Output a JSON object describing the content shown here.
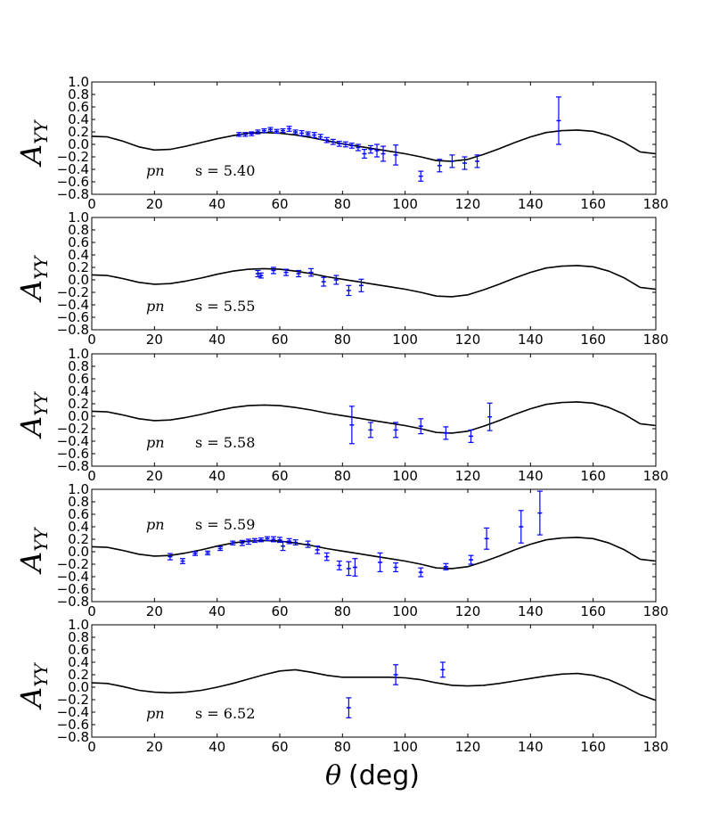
{
  "chart_data": {
    "type": "scatter",
    "shared_axes": {
      "xlabel_symbol": "θ",
      "xlabel_unit": "(deg)",
      "ylabel_main": "A",
      "ylabel_sub": "YY",
      "xlim": [
        0,
        180
      ],
      "ylim": [
        -0.8,
        1.0
      ],
      "xticks": [
        "0",
        "20",
        "40",
        "60",
        "80",
        "100",
        "120",
        "140",
        "160",
        "180"
      ],
      "yticks": [
        "1.0",
        "0.8",
        "0.6",
        "0.4",
        "0.2",
        "0.0",
        "−0.2",
        "−0.4",
        "−0.6",
        "−0.8"
      ],
      "ytick_values": [
        1.0,
        0.8,
        0.6,
        0.4,
        0.2,
        0.0,
        -0.2,
        -0.4,
        -0.6,
        -0.8
      ],
      "xtick_values": [
        0,
        20,
        40,
        60,
        80,
        100,
        120,
        140,
        160,
        180
      ],
      "data_color": "#0000ff",
      "curve_color": "#000000"
    },
    "panels": [
      {
        "reaction": "pn",
        "energy_label": "s = 5.40",
        "label_position": "bottom-left",
        "curve": [
          [
            0,
            0.13
          ],
          [
            5,
            0.12
          ],
          [
            10,
            0.05
          ],
          [
            15,
            -0.04
          ],
          [
            20,
            -0.09
          ],
          [
            25,
            -0.08
          ],
          [
            30,
            -0.03
          ],
          [
            35,
            0.03
          ],
          [
            40,
            0.09
          ],
          [
            45,
            0.14
          ],
          [
            50,
            0.18
          ],
          [
            55,
            0.19
          ],
          [
            60,
            0.18
          ],
          [
            65,
            0.15
          ],
          [
            70,
            0.11
          ],
          [
            75,
            0.06
          ],
          [
            80,
            0.01
          ],
          [
            85,
            -0.03
          ],
          [
            90,
            -0.07
          ],
          [
            95,
            -0.11
          ],
          [
            100,
            -0.15
          ],
          [
            105,
            -0.2
          ],
          [
            110,
            -0.26
          ],
          [
            115,
            -0.27
          ],
          [
            120,
            -0.24
          ],
          [
            125,
            -0.16
          ],
          [
            130,
            -0.07
          ],
          [
            135,
            0.03
          ],
          [
            140,
            0.12
          ],
          [
            145,
            0.19
          ],
          [
            150,
            0.22
          ],
          [
            155,
            0.23
          ],
          [
            160,
            0.21
          ],
          [
            165,
            0.14
          ],
          [
            170,
            0.03
          ],
          [
            175,
            -0.12
          ],
          [
            180,
            -0.15
          ]
        ],
        "points": [
          [
            47,
            0.16,
            0.03
          ],
          [
            49,
            0.16,
            0.03
          ],
          [
            51,
            0.17,
            0.03
          ],
          [
            53,
            0.2,
            0.03
          ],
          [
            55,
            0.22,
            0.03
          ],
          [
            57,
            0.24,
            0.03
          ],
          [
            59,
            0.21,
            0.03
          ],
          [
            61,
            0.22,
            0.03
          ],
          [
            63,
            0.25,
            0.04
          ],
          [
            65,
            0.2,
            0.03
          ],
          [
            67,
            0.18,
            0.04
          ],
          [
            69,
            0.17,
            0.03
          ],
          [
            71,
            0.15,
            0.04
          ],
          [
            73,
            0.12,
            0.04
          ],
          [
            75,
            0.07,
            0.04
          ],
          [
            77,
            0.04,
            0.04
          ],
          [
            79,
            0.01,
            0.04
          ],
          [
            81,
            0.0,
            0.04
          ],
          [
            83,
            -0.02,
            0.04
          ],
          [
            85,
            -0.05,
            0.05
          ],
          [
            87,
            -0.15,
            0.07
          ],
          [
            89,
            -0.08,
            0.06
          ],
          [
            91,
            -0.1,
            0.1
          ],
          [
            93,
            -0.15,
            0.12
          ],
          [
            97,
            -0.17,
            0.16
          ],
          [
            105,
            -0.51,
            0.08
          ],
          [
            111,
            -0.34,
            0.1
          ],
          [
            115,
            -0.27,
            0.1
          ],
          [
            119,
            -0.3,
            0.1
          ],
          [
            123,
            -0.27,
            0.1
          ],
          [
            149,
            0.38,
            0.38
          ]
        ]
      },
      {
        "reaction": "pn",
        "energy_label": "s = 5.55",
        "label_position": "bottom-left",
        "curve": [
          [
            0,
            0.08
          ],
          [
            5,
            0.07
          ],
          [
            10,
            0.02
          ],
          [
            15,
            -0.04
          ],
          [
            20,
            -0.07
          ],
          [
            25,
            -0.06
          ],
          [
            30,
            -0.02
          ],
          [
            35,
            0.03
          ],
          [
            40,
            0.09
          ],
          [
            45,
            0.14
          ],
          [
            50,
            0.17
          ],
          [
            55,
            0.18
          ],
          [
            60,
            0.17
          ],
          [
            65,
            0.14
          ],
          [
            70,
            0.1
          ],
          [
            75,
            0.05
          ],
          [
            80,
            0.01
          ],
          [
            85,
            -0.03
          ],
          [
            90,
            -0.07
          ],
          [
            95,
            -0.11
          ],
          [
            100,
            -0.15
          ],
          [
            105,
            -0.2
          ],
          [
            110,
            -0.26
          ],
          [
            115,
            -0.27
          ],
          [
            120,
            -0.24
          ],
          [
            125,
            -0.16
          ],
          [
            130,
            -0.07
          ],
          [
            135,
            0.03
          ],
          [
            140,
            0.12
          ],
          [
            145,
            0.19
          ],
          [
            150,
            0.22
          ],
          [
            155,
            0.23
          ],
          [
            160,
            0.21
          ],
          [
            165,
            0.14
          ],
          [
            170,
            0.03
          ],
          [
            175,
            -0.12
          ],
          [
            180,
            -0.15
          ]
        ],
        "points": [
          [
            53,
            0.1,
            0.05
          ],
          [
            54,
            0.07,
            0.04
          ],
          [
            58,
            0.15,
            0.05
          ],
          [
            62,
            0.12,
            0.05
          ],
          [
            66,
            0.1,
            0.05
          ],
          [
            70,
            0.12,
            0.06
          ],
          [
            74,
            -0.03,
            0.07
          ],
          [
            78,
            0.0,
            0.07
          ],
          [
            82,
            -0.17,
            0.08
          ],
          [
            86,
            -0.09,
            0.1
          ]
        ]
      },
      {
        "reaction": "pn",
        "energy_label": "s = 5.58",
        "label_position": "bottom-left",
        "curve": [
          [
            0,
            0.08
          ],
          [
            5,
            0.07
          ],
          [
            10,
            0.02
          ],
          [
            15,
            -0.04
          ],
          [
            20,
            -0.07
          ],
          [
            25,
            -0.06
          ],
          [
            30,
            -0.02
          ],
          [
            35,
            0.03
          ],
          [
            40,
            0.09
          ],
          [
            45,
            0.14
          ],
          [
            50,
            0.17
          ],
          [
            55,
            0.18
          ],
          [
            60,
            0.17
          ],
          [
            65,
            0.14
          ],
          [
            70,
            0.1
          ],
          [
            75,
            0.05
          ],
          [
            80,
            0.01
          ],
          [
            85,
            -0.03
          ],
          [
            90,
            -0.07
          ],
          [
            95,
            -0.11
          ],
          [
            100,
            -0.15
          ],
          [
            105,
            -0.2
          ],
          [
            110,
            -0.26
          ],
          [
            115,
            -0.27
          ],
          [
            120,
            -0.24
          ],
          [
            125,
            -0.16
          ],
          [
            130,
            -0.07
          ],
          [
            135,
            0.03
          ],
          [
            140,
            0.12
          ],
          [
            145,
            0.19
          ],
          [
            150,
            0.22
          ],
          [
            155,
            0.23
          ],
          [
            160,
            0.21
          ],
          [
            165,
            0.14
          ],
          [
            170,
            0.03
          ],
          [
            175,
            -0.12
          ],
          [
            180,
            -0.15
          ]
        ],
        "points": [
          [
            83,
            -0.14,
            0.3
          ],
          [
            89,
            -0.22,
            0.12
          ],
          [
            97,
            -0.22,
            0.12
          ],
          [
            105,
            -0.16,
            0.12
          ],
          [
            113,
            -0.27,
            0.1
          ],
          [
            121,
            -0.32,
            0.1
          ],
          [
            127,
            -0.01,
            0.22
          ]
        ]
      },
      {
        "reaction": "pn",
        "energy_label": "s = 5.59",
        "label_position": "top-left",
        "curve": [
          [
            0,
            0.08
          ],
          [
            5,
            0.07
          ],
          [
            10,
            0.02
          ],
          [
            15,
            -0.04
          ],
          [
            20,
            -0.07
          ],
          [
            25,
            -0.06
          ],
          [
            30,
            -0.02
          ],
          [
            35,
            0.03
          ],
          [
            40,
            0.09
          ],
          [
            45,
            0.14
          ],
          [
            50,
            0.17
          ],
          [
            55,
            0.18
          ],
          [
            60,
            0.17
          ],
          [
            65,
            0.14
          ],
          [
            70,
            0.1
          ],
          [
            75,
            0.05
          ],
          [
            80,
            0.01
          ],
          [
            85,
            -0.03
          ],
          [
            90,
            -0.07
          ],
          [
            95,
            -0.11
          ],
          [
            100,
            -0.15
          ],
          [
            105,
            -0.2
          ],
          [
            110,
            -0.26
          ],
          [
            115,
            -0.27
          ],
          [
            120,
            -0.24
          ],
          [
            125,
            -0.16
          ],
          [
            130,
            -0.07
          ],
          [
            135,
            0.03
          ],
          [
            140,
            0.12
          ],
          [
            145,
            0.19
          ],
          [
            150,
            0.22
          ],
          [
            155,
            0.23
          ],
          [
            160,
            0.21
          ],
          [
            165,
            0.14
          ],
          [
            170,
            0.03
          ],
          [
            175,
            -0.12
          ],
          [
            180,
            -0.15
          ]
        ],
        "points": [
          [
            25,
            -0.08,
            0.05
          ],
          [
            29,
            -0.15,
            0.04
          ],
          [
            33,
            -0.03,
            0.03
          ],
          [
            37,
            -0.02,
            0.03
          ],
          [
            41,
            0.05,
            0.03
          ],
          [
            45,
            0.14,
            0.03
          ],
          [
            48,
            0.14,
            0.04
          ],
          [
            50,
            0.16,
            0.04
          ],
          [
            52,
            0.18,
            0.03
          ],
          [
            54,
            0.19,
            0.03
          ],
          [
            56,
            0.21,
            0.03
          ],
          [
            58,
            0.2,
            0.04
          ],
          [
            60,
            0.19,
            0.04
          ],
          [
            61,
            0.09,
            0.07
          ],
          [
            63,
            0.17,
            0.04
          ],
          [
            65,
            0.15,
            0.04
          ],
          [
            69,
            0.12,
            0.05
          ],
          [
            72,
            0.03,
            0.06
          ],
          [
            75,
            -0.08,
            0.06
          ],
          [
            79,
            -0.22,
            0.07
          ],
          [
            82,
            -0.27,
            0.11
          ],
          [
            84,
            -0.25,
            0.14
          ],
          [
            92,
            -0.17,
            0.15
          ],
          [
            97,
            -0.25,
            0.07
          ],
          [
            105,
            -0.33,
            0.07
          ],
          [
            113,
            -0.24,
            0.05
          ],
          [
            121,
            -0.13,
            0.07
          ],
          [
            126,
            0.21,
            0.17
          ],
          [
            137,
            0.4,
            0.26
          ],
          [
            143,
            0.62,
            0.35
          ]
        ]
      },
      {
        "reaction": "pn",
        "energy_label": "s = 6.52",
        "label_position": "bottom-left",
        "curve": [
          [
            0,
            0.07
          ],
          [
            5,
            0.06
          ],
          [
            10,
            0.01
          ],
          [
            15,
            -0.05
          ],
          [
            20,
            -0.08
          ],
          [
            25,
            -0.09
          ],
          [
            30,
            -0.08
          ],
          [
            35,
            -0.05
          ],
          [
            40,
            0.0
          ],
          [
            45,
            0.06
          ],
          [
            50,
            0.13
          ],
          [
            55,
            0.2
          ],
          [
            60,
            0.26
          ],
          [
            65,
            0.28
          ],
          [
            70,
            0.24
          ],
          [
            75,
            0.19
          ],
          [
            80,
            0.16
          ],
          [
            85,
            0.16
          ],
          [
            90,
            0.16
          ],
          [
            95,
            0.16
          ],
          [
            100,
            0.15
          ],
          [
            105,
            0.12
          ],
          [
            110,
            0.07
          ],
          [
            115,
            0.03
          ],
          [
            120,
            0.02
          ],
          [
            125,
            0.03
          ],
          [
            130,
            0.06
          ],
          [
            135,
            0.1
          ],
          [
            140,
            0.14
          ],
          [
            145,
            0.18
          ],
          [
            150,
            0.21
          ],
          [
            155,
            0.22
          ],
          [
            160,
            0.19
          ],
          [
            165,
            0.12
          ],
          [
            170,
            0.01
          ],
          [
            175,
            -0.12
          ],
          [
            180,
            -0.21
          ]
        ],
        "points": [
          [
            82,
            -0.33,
            0.16
          ],
          [
            97,
            0.2,
            0.16
          ],
          [
            112,
            0.28,
            0.12
          ]
        ]
      }
    ]
  }
}
